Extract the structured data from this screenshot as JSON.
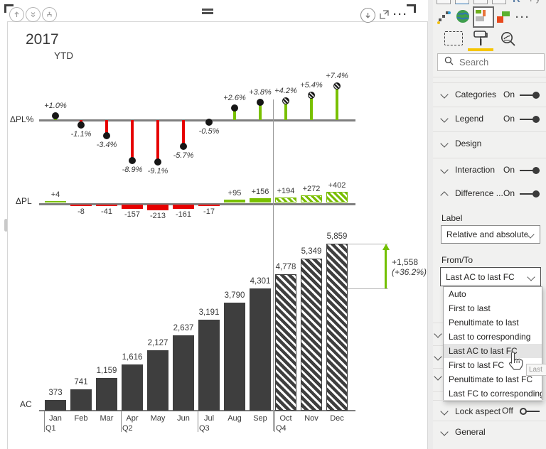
{
  "chart_data": {
    "type": "bar",
    "title": "2017",
    "subtitle": "YTD",
    "categories": [
      "Jan",
      "Feb",
      "Mar",
      "Apr",
      "May",
      "Jun",
      "Jul",
      "Aug",
      "Sep",
      "Oct",
      "Nov",
      "Dec"
    ],
    "quarters": [
      {
        "label": "Q1",
        "month_index": 0
      },
      {
        "label": "Q2",
        "month_index": 3
      },
      {
        "label": "Q3",
        "month_index": 6
      },
      {
        "label": "Q4",
        "month_index": 9
      }
    ],
    "forecast_start_index": 9,
    "series": [
      {
        "name": "ΔPL%",
        "type": "pin",
        "unit": "%",
        "values": [
          1.0,
          -1.1,
          -3.4,
          -8.9,
          -9.1,
          -5.7,
          -0.5,
          2.6,
          3.8,
          4.2,
          5.4,
          7.4
        ],
        "labels": [
          "+1.0%",
          "-1.1%",
          "-3.4%",
          "-8.9%",
          "-9.1%",
          "-5.7%",
          "-0.5%",
          "+2.6%",
          "+3.8%",
          "+4.2%",
          "+5.4%",
          "+7.4%"
        ]
      },
      {
        "name": "ΔPL",
        "type": "bar",
        "values": [
          4,
          -8,
          -41,
          -157,
          -213,
          -161,
          -17,
          95,
          156,
          194,
          272,
          402
        ],
        "labels": [
          "+4",
          "-8",
          "-41",
          "-157",
          "-213",
          "-161",
          "-17",
          "+95",
          "+156",
          "+194",
          "+272",
          "+402"
        ]
      },
      {
        "name": "AC",
        "type": "column",
        "values": [
          373,
          741,
          1159,
          1616,
          2127,
          2637,
          3191,
          3790,
          4301,
          4778,
          5349,
          5859
        ],
        "labels": [
          "373",
          "741",
          "1,159",
          "1,616",
          "2,127",
          "2,637",
          "3,191",
          "3,790",
          "4,301",
          "4,778",
          "5,349",
          "5,859"
        ]
      }
    ],
    "difference_arrow": {
      "absolute_label": "+1,558",
      "relative_label": "(+36.2%)",
      "from_value": 4301,
      "to_value": 5859
    },
    "colors": {
      "positive": "#79c000",
      "negative": "#e60000",
      "actual": "#3e3e3e",
      "axis": "#7f7f7f"
    },
    "legend_position": "left",
    "grid": false
  },
  "panel": {
    "search": {
      "placeholder": "Search"
    },
    "sections": [
      {
        "label": "Categories",
        "toggle": "On",
        "expanded": false
      },
      {
        "label": "Legend",
        "toggle": "On",
        "expanded": false
      },
      {
        "label": "Design",
        "toggle": null,
        "expanded": false
      },
      {
        "label": "Interaction",
        "toggle": "On",
        "expanded": false
      },
      {
        "label": "Difference ...",
        "toggle": "On",
        "expanded": true
      }
    ],
    "difference_settings": {
      "label_heading": "Label",
      "label_value": "Relative and absolute",
      "fromto_heading": "From/To",
      "fromto_value": "Last AC to last FC",
      "options": [
        "Auto",
        "First to last",
        "Penultimate to last",
        "Last to corresponding",
        "Last AC to last FC",
        "First to last FC",
        "Penultimate to last FC",
        "Last FC to corresponding"
      ],
      "highlighted_option": "Last AC to last FC"
    },
    "bottom_sections": [
      {
        "label": "Lock aspect",
        "toggle": "Off"
      },
      {
        "label": "General",
        "toggle": null
      }
    ],
    "tooltip_fragment": "Last"
  }
}
